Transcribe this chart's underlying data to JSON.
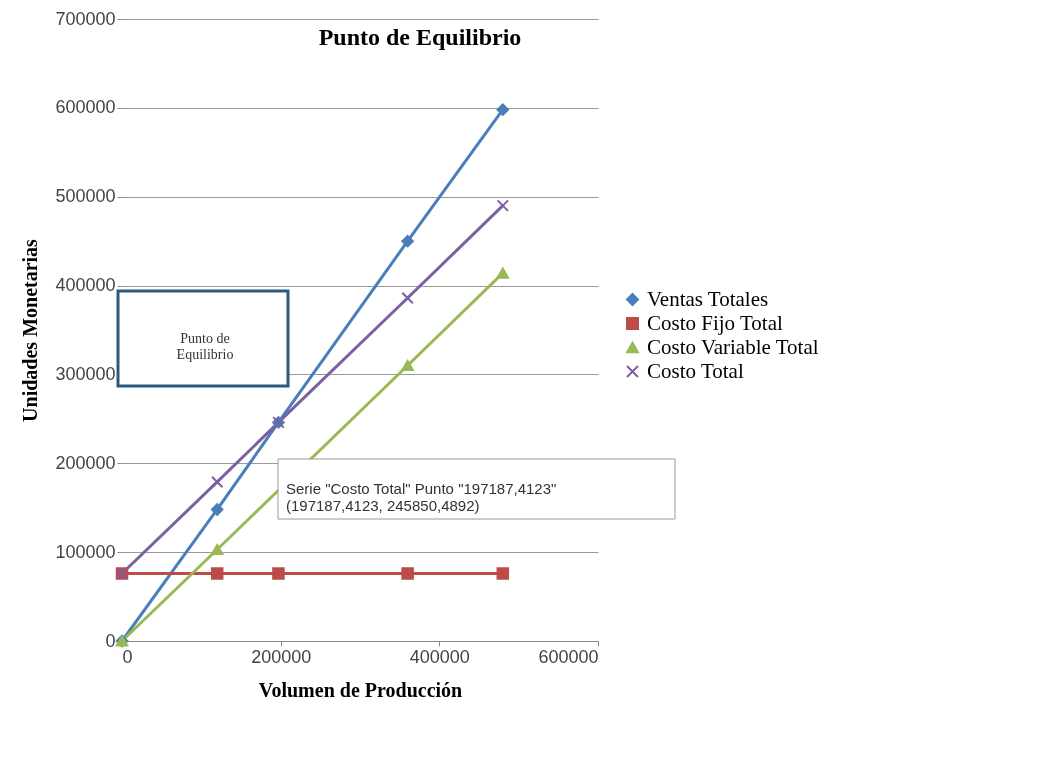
{
  "chart_data": {
    "type": "line",
    "title": "Punto de Equilibrio",
    "xlabel": "Volumen de Producción",
    "ylabel": "Unidades Monetarias",
    "x": [
      0,
      120000,
      197187,
      360000,
      480000
    ],
    "series": [
      {
        "name": "Ventas Totales",
        "color": "#4a7ebb",
        "marker": "diamond",
        "values": [
          0,
          148000,
          246000,
          450000,
          598000
        ]
      },
      {
        "name": "Costo Fijo Total",
        "color": "#be4b48",
        "marker": "square",
        "values": [
          76000,
          76000,
          76000,
          76000,
          76000
        ]
      },
      {
        "name": "Costo Variable Total",
        "color": "#98b954",
        "marker": "triangle",
        "values": [
          0,
          103000,
          null,
          310000,
          414000
        ]
      },
      {
        "name": "Costo Total",
        "color": "#7d60a0",
        "marker": "cross",
        "values": [
          76000,
          179000,
          246000,
          386000,
          490000
        ]
      }
    ],
    "xlim": [
      0,
      600000
    ],
    "xticks": [
      0,
      200000,
      400000,
      600000
    ],
    "ylim": [
      0,
      700000
    ],
    "yticks": [
      0,
      100000,
      200000,
      300000,
      400000,
      500000,
      600000,
      700000
    ],
    "grid": "y",
    "legend": "right",
    "annotations": [
      "Punto de\nEquilibrio",
      "Serie \"Costo Total\" Punto \"197187,4123\"\n(197187,4123, 245850,4892)"
    ]
  }
}
